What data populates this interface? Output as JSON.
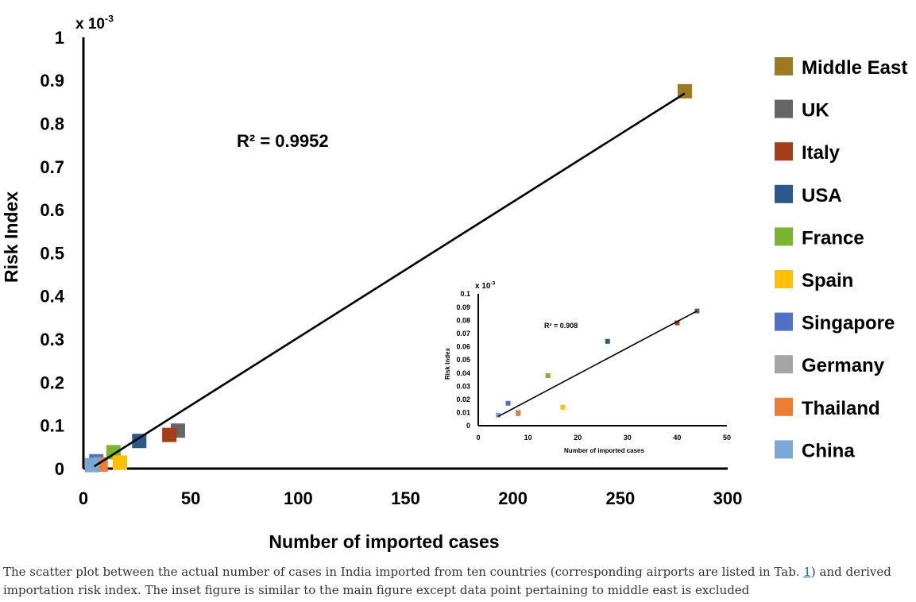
{
  "chart_data": [
    {
      "id": "main",
      "type": "scatter",
      "xlabel": "Number of imported cases",
      "ylabel": "Risk Index",
      "y_multiplier": "x 10-3",
      "xlim": [
        0,
        300
      ],
      "ylim": [
        0,
        1
      ],
      "xticks": [
        0,
        50,
        100,
        150,
        200,
        250,
        300
      ],
      "yticks": [
        0,
        0.1,
        0.2,
        0.3,
        0.4,
        0.5,
        0.6,
        0.7,
        0.8,
        0.9,
        1
      ],
      "ytick_labels": [
        "0",
        "0.1",
        "0.2",
        "0.3",
        "0.4",
        "0.5",
        "0.6",
        "0.7",
        "0.8",
        "0.9",
        "1"
      ],
      "annotation": "R² = 0.9952",
      "trendline": {
        "x": [
          5,
          280
        ],
        "y": [
          0.005,
          0.87
        ]
      },
      "legend_position": "right",
      "series": [
        {
          "name": "Middle East",
          "color": "#9C7A20",
          "x": 280,
          "y": 0.875
        },
        {
          "name": "UK",
          "color": "#656565",
          "x": 44,
          "y": 0.088
        },
        {
          "name": "Italy",
          "color": "#A43E16",
          "x": 40,
          "y": 0.078
        },
        {
          "name": "USA",
          "color": "#2A5A8C",
          "x": 26,
          "y": 0.064
        },
        {
          "name": "France",
          "color": "#7AB52E",
          "x": 14,
          "y": 0.038
        },
        {
          "name": "Spain",
          "color": "#FFC000",
          "x": 17,
          "y": 0.014
        },
        {
          "name": "Singapore",
          "color": "#4F72C4",
          "x": 6,
          "y": 0.017
        },
        {
          "name": "Germany",
          "color": "#A5A5A5",
          "x": 8,
          "y": 0.01
        },
        {
          "name": "Thailand",
          "color": "#ED7D31",
          "x": 8,
          "y": 0.009
        },
        {
          "name": "China",
          "color": "#7BA7D7",
          "x": 4,
          "y": 0.008
        }
      ]
    },
    {
      "id": "inset",
      "type": "scatter",
      "xlabel": "Number of imported cases",
      "ylabel": "Risk Index",
      "y_multiplier": "x 10-3",
      "xlim": [
        0,
        50
      ],
      "ylim": [
        0,
        0.1
      ],
      "xticks": [
        0,
        10,
        20,
        30,
        40,
        50
      ],
      "yticks": [
        0,
        0.01,
        0.02,
        0.03,
        0.04,
        0.05,
        0.06,
        0.07,
        0.08,
        0.09,
        0.1
      ],
      "ytick_labels": [
        "0",
        "0.01",
        "0.02",
        "0.03",
        "0.04",
        "0.05",
        "0.06",
        "0.07",
        "0.08",
        "0.09",
        "0.1"
      ],
      "annotation": "R² = 0.908",
      "trendline": {
        "x": [
          4,
          44
        ],
        "y": [
          0.007,
          0.087
        ]
      },
      "series": [
        {
          "name": "UK",
          "color": "#656565",
          "x": 44,
          "y": 0.087
        },
        {
          "name": "Italy",
          "color": "#A43E16",
          "x": 40,
          "y": 0.078
        },
        {
          "name": "USA",
          "color": "#2A5A8C",
          "x": 26,
          "y": 0.064
        },
        {
          "name": "France",
          "color": "#7AB52E",
          "x": 14,
          "y": 0.038
        },
        {
          "name": "Spain",
          "color": "#FFC000",
          "x": 17,
          "y": 0.014
        },
        {
          "name": "Singapore",
          "color": "#4F72C4",
          "x": 6,
          "y": 0.017
        },
        {
          "name": "Germany",
          "color": "#A5A5A5",
          "x": 8,
          "y": 0.009
        },
        {
          "name": "Thailand",
          "color": "#ED7D31",
          "x": 8,
          "y": 0.01
        },
        {
          "name": "China",
          "color": "#7BA7D7",
          "x": 4,
          "y": 0.008
        }
      ]
    }
  ],
  "caption": {
    "before": "The scatter plot between the actual number of cases in India imported from ten countries (corresponding airports are listed in Tab. ",
    "ref": "1",
    "after": ") and derived importation risk index. The inset figure is similar to the main figure except data point pertaining to middle east is excluded"
  }
}
